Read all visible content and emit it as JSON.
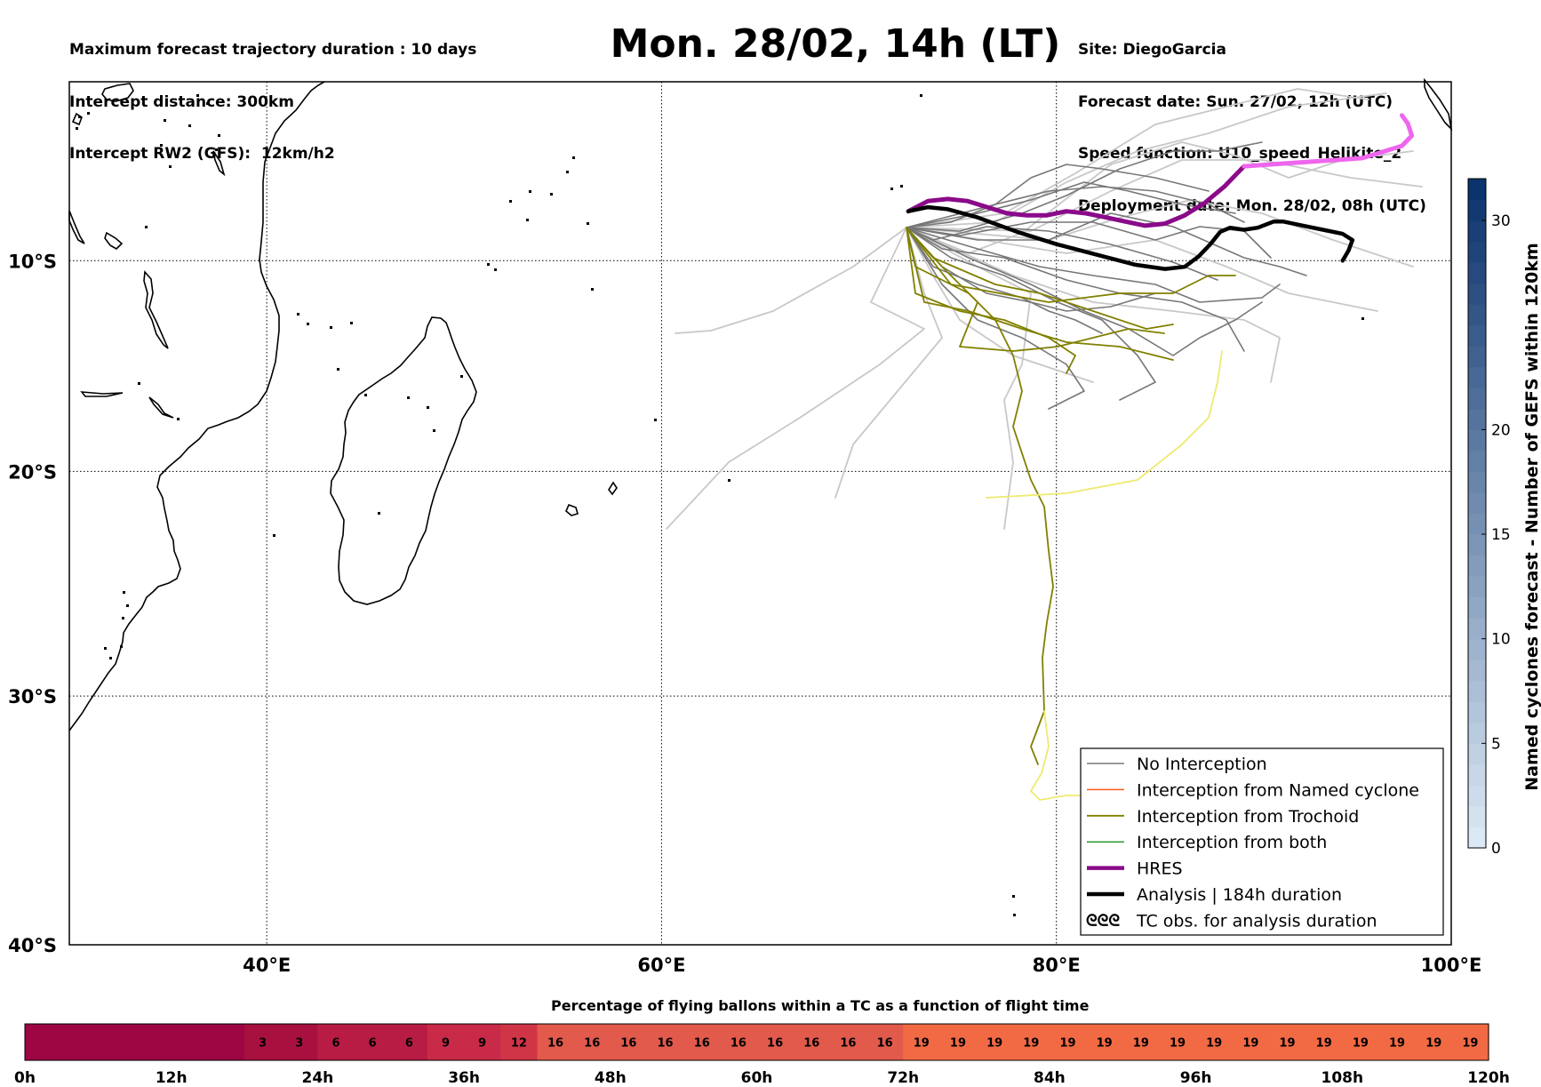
{
  "header": {
    "left_lines": [
      "Maximum forecast trajectory duration : 10 days",
      "Intercept distance: 300km",
      "Intercept RW2 (GFS):  12km/h2"
    ],
    "title": "Mon. 28/02, 14h (LT)",
    "right_lines": [
      "Site: DiegoGarcia",
      "Forecast date: Sun. 27/02, 12h (UTC)",
      "Speed function: U10_speed_Helikite_2",
      "Deployment date: Mon. 28/02, 08h (UTC)"
    ]
  },
  "map": {
    "lon_range": [
      30,
      100
    ],
    "lat_range": [
      -40,
      -1
    ],
    "x_ticks": [
      {
        "v": 40,
        "label": "40°E"
      },
      {
        "v": 60,
        "label": "60°E"
      },
      {
        "v": 80,
        "label": "80°E"
      },
      {
        "v": 100,
        "label": "100°E"
      }
    ],
    "y_ticks": [
      {
        "v": -10,
        "label": "10°S"
      },
      {
        "v": -20,
        "label": "20°S"
      },
      {
        "v": -30,
        "label": "30°S"
      },
      {
        "v": -40,
        "label": "40°S"
      }
    ],
    "grid": "dotted"
  },
  "colors": {
    "no_interception": "#777777",
    "named_cyclone": "#ff5a1f",
    "trochoid": "#808000",
    "both": "#2e9b2e",
    "hres": "#8a0a8a",
    "analysis": "#000000",
    "late_member": "#c8c8c8",
    "late_trochoid": "#eeea70",
    "hres_tail": "#ee66ee"
  },
  "legend": {
    "entries": [
      {
        "label": "No Interception",
        "style": "no_interception"
      },
      {
        "label": "Interception from Named cyclone",
        "style": "named_cyclone"
      },
      {
        "label": "Interception from Trochoid",
        "style": "trochoid"
      },
      {
        "label": "Interception from both",
        "style": "both"
      },
      {
        "label": "HRES",
        "style": "hres"
      },
      {
        "label": "Analysis | 184h duration",
        "style": "analysis"
      },
      {
        "label": "TC obs. for analysis duration",
        "style": "tc_symbol"
      }
    ],
    "tc_symbol": "ᘓᘓᘓ",
    "placement": "lower-right"
  },
  "side_colorbar": {
    "label": "Named cyclones forecast - Number of GEFS within 120km",
    "range": [
      0,
      32
    ],
    "ticks": [
      0,
      5,
      10,
      15,
      20,
      30
    ],
    "colormap": "Blues"
  },
  "chart_data": {
    "type": "line",
    "title": "Mon. 28/02, 14h (LT)",
    "xlabel": "",
    "ylabel": "",
    "xlim": [
      30,
      100
    ],
    "ylim": [
      -40,
      -1
    ],
    "series": [
      {
        "name": "HRES",
        "x": [
          72.5,
          73.5,
          74.5,
          75.5,
          76.5,
          77.5,
          78.5,
          79.5,
          80.5,
          81.5,
          82.5,
          83.5,
          84.5,
          85.5,
          86.5,
          87.5,
          88.5,
          89.5
        ],
        "y": [
          -7.6,
          -7.1,
          -7.0,
          -7.1,
          -7.4,
          -7.7,
          -7.8,
          -7.8,
          -7.6,
          -7.7,
          -7.9,
          -8.1,
          -8.3,
          -8.2,
          -7.8,
          -7.2,
          -6.4,
          -5.4
        ]
      },
      {
        "name": "HRES tail",
        "x": [
          89.5,
          91,
          92.5,
          94,
          95.5,
          96.5,
          97.5,
          98,
          97.8,
          97.5
        ],
        "y": [
          -5.4,
          -5.3,
          -5.2,
          -5.1,
          -5.0,
          -4.7,
          -4.4,
          -3.9,
          -3.3,
          -2.9
        ]
      },
      {
        "name": "Analysis | 184h duration",
        "x": [
          72.5,
          73.5,
          74.5,
          76,
          78,
          80,
          82,
          84,
          85.5,
          86.5,
          87.2,
          87.8,
          88.3,
          88.8,
          89.5,
          90.2,
          91.0,
          91.5,
          92.5,
          93.5,
          94.5,
          95.0,
          94.8,
          94.5
        ],
        "y": [
          -7.6,
          -7.4,
          -7.5,
          -7.9,
          -8.6,
          -9.2,
          -9.7,
          -10.2,
          -10.4,
          -10.3,
          -9.8,
          -9.2,
          -8.6,
          -8.4,
          -8.5,
          -8.4,
          -8.1,
          -8.1,
          -8.3,
          -8.5,
          -8.7,
          -9.0,
          -9.5,
          -10.0
        ]
      },
      {
        "name": "Named cyclone fraction (%)",
        "x": [
          "0h",
          "12h",
          "24h",
          "36h",
          "48h",
          "60h",
          "72h",
          "84h",
          "96h",
          "108h",
          "120h"
        ],
        "y": [
          0,
          0,
          3,
          9,
          16,
          16,
          19,
          19,
          19,
          19,
          19
        ]
      }
    ]
  },
  "bottom_colorbar": {
    "title": "Percentage of flying ballons within a TC as a function of flight time",
    "values": [
      0,
      0,
      0,
      0,
      0,
      0,
      3,
      3,
      6,
      6,
      6,
      9,
      9,
      12,
      16,
      16,
      16,
      16,
      16,
      16,
      16,
      16,
      16,
      16,
      19,
      19,
      19,
      19,
      19,
      19,
      19,
      19,
      19,
      19,
      19,
      19,
      19,
      19,
      19,
      19
    ],
    "tick_labels": [
      "0h",
      "12h",
      "24h",
      "36h",
      "48h",
      "60h",
      "72h",
      "84h",
      "96h",
      "108h",
      "120h"
    ],
    "cell_colors": {
      "0": "#9d0543",
      "3": "#a8113f",
      "6": "#b81c44",
      "9": "#c82a47",
      "12": "#cf3447",
      "16": "#e15a4b",
      "19": "#f26a44"
    }
  }
}
